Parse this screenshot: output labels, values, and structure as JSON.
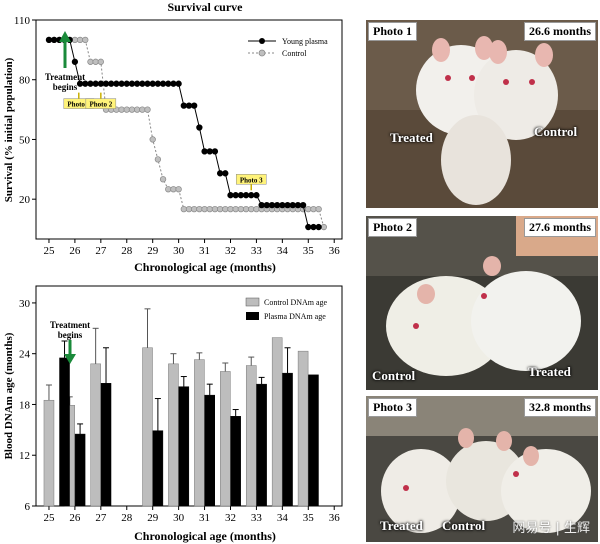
{
  "colors": {
    "young": "#000000",
    "control_line": "#888888",
    "control_fill": "#bfbfbf",
    "plasma_bar": "#000000",
    "control_bar": "#bdbdbd",
    "arrow": "#1a8a3a",
    "photo_tag": "#fff37a"
  },
  "survival": {
    "title": "Survival curve",
    "legend_young": "Young plasma",
    "legend_control": "Control",
    "treatment_label_line1": "Treatment",
    "treatment_label_line2": "begins",
    "photo_tags": [
      {
        "label": "Photo 1",
        "x": 26.15,
        "y": 68
      },
      {
        "label": "Photo 2",
        "x": 27.0,
        "y": 68
      },
      {
        "label": "Photo 3",
        "x": 32.8,
        "y": 30
      }
    ]
  },
  "dnam": {
    "treatment_label_line1": "Treatment",
    "treatment_label_line2": "begins",
    "legend_control": "Control DNAm age",
    "legend_plasma": "Plasma DNAm age"
  },
  "photos": [
    {
      "tag": "Photo 1",
      "age": "26.6 months",
      "left_caption": "Treated",
      "right_caption": "Control"
    },
    {
      "tag": "Photo 2",
      "age": "27.6 months",
      "left_caption": "Control",
      "right_caption": "Treated"
    },
    {
      "tag": "Photo 3",
      "age": "32.8 months",
      "left_caption": "Treated",
      "right_caption": "Control"
    }
  ],
  "watermark": "网易号 | 生辉",
  "chart_data": [
    {
      "type": "line",
      "title": "Survival curve",
      "xlabel": "Chronological age (months)",
      "ylabel": "Survival (% initial population)",
      "xlim": [
        24.5,
        36.3
      ],
      "ylim": [
        0,
        110
      ],
      "xticks": [
        25,
        26,
        27,
        28,
        29,
        30,
        31,
        32,
        33,
        34,
        35,
        36
      ],
      "yticks": [
        20,
        50,
        80,
        110
      ],
      "legend": "top-right",
      "series": [
        {
          "name": "Young plasma",
          "marker": "filled-circle",
          "x": [
            25.0,
            25.2,
            25.4,
            25.6,
            25.8,
            26.0,
            26.2,
            26.4,
            26.6,
            26.8,
            27.0,
            27.2,
            27.4,
            27.6,
            27.8,
            28.0,
            28.2,
            28.4,
            28.6,
            28.8,
            29.0,
            29.2,
            29.4,
            29.6,
            29.8,
            30.0,
            30.2,
            30.4,
            30.6,
            30.8,
            31.0,
            31.2,
            31.4,
            31.6,
            31.8,
            32.0,
            32.2,
            32.4,
            32.6,
            32.8,
            33.0,
            33.2,
            33.4,
            33.6,
            33.8,
            34.0,
            34.2,
            34.4,
            34.6,
            34.8,
            35.0,
            35.2,
            35.4
          ],
          "y": [
            100,
            100,
            100,
            100,
            100,
            89,
            78,
            78,
            78,
            78,
            78,
            78,
            78,
            78,
            78,
            78,
            78,
            78,
            78,
            78,
            78,
            78,
            78,
            78,
            78,
            78,
            67,
            67,
            67,
            56,
            44,
            44,
            44,
            33,
            33,
            22,
            22,
            22,
            22,
            22,
            22,
            17,
            17,
            17,
            17,
            17,
            17,
            17,
            17,
            17,
            6,
            6,
            6
          ]
        },
        {
          "name": "Control",
          "marker": "open-circle",
          "x": [
            25.0,
            25.2,
            25.4,
            25.6,
            25.8,
            26.0,
            26.2,
            26.4,
            26.6,
            26.8,
            27.0,
            27.2,
            27.4,
            27.6,
            27.8,
            28.0,
            28.2,
            28.4,
            28.6,
            28.8,
            29.0,
            29.2,
            29.4,
            29.6,
            29.8,
            30.0,
            30.2,
            30.4,
            30.6,
            30.8,
            31.0,
            31.2,
            31.4,
            31.6,
            31.8,
            32.0,
            32.2,
            32.4,
            32.6,
            32.8,
            33.0,
            33.2,
            33.4,
            33.6,
            33.8,
            34.0,
            34.2,
            34.4,
            34.6,
            34.8,
            35.0,
            35.2,
            35.4,
            35.6
          ],
          "y": [
            100,
            100,
            100,
            100,
            100,
            100,
            100,
            100,
            89,
            89,
            89,
            65,
            65,
            65,
            65,
            65,
            65,
            65,
            65,
            65,
            50,
            40,
            30,
            25,
            25,
            25,
            15,
            15,
            15,
            15,
            15,
            15,
            15,
            15,
            15,
            15,
            15,
            15,
            15,
            15,
            15,
            15,
            15,
            15,
            15,
            15,
            15,
            15,
            15,
            15,
            15,
            15,
            15,
            6
          ]
        }
      ]
    },
    {
      "type": "bar",
      "xlabel": "Chronological age (months)",
      "ylabel": "Blood DNAm age (months)",
      "xlim": [
        24.5,
        36.3
      ],
      "ylim": [
        6,
        32
      ],
      "xticks": [
        25,
        26,
        27,
        28,
        29,
        30,
        31,
        32,
        33,
        34,
        35,
        36
      ],
      "yticks": [
        6,
        12,
        18,
        24,
        30
      ],
      "legend": "top-right",
      "series": [
        {
          "name": "Control DNAm age",
          "x": [
            25.0,
            25.8,
            26.8,
            28.8,
            29.8,
            30.8,
            31.8,
            32.8,
            33.8,
            34.8
          ],
          "values": [
            18.5,
            17.9,
            22.8,
            24.7,
            22.8,
            23.3,
            21.9,
            22.6,
            25.9,
            24.3
          ],
          "errors": [
            1.8,
            1.0,
            4.2,
            4.6,
            1.2,
            0.8,
            1.0,
            1.0,
            0.0,
            0.0
          ]
        },
        {
          "name": "Plasma DNAm age",
          "x": [
            25.6,
            26.2,
            27.2,
            29.2,
            30.2,
            31.2,
            32.2,
            33.2,
            34.2,
            35.2
          ],
          "values": [
            23.5,
            14.5,
            20.5,
            14.9,
            20.1,
            19.1,
            16.6,
            20.4,
            21.7,
            21.5
          ],
          "errors": [
            2.0,
            1.2,
            4.2,
            3.8,
            1.2,
            1.3,
            0.8,
            0.8,
            3.0,
            0.0
          ]
        }
      ]
    }
  ]
}
